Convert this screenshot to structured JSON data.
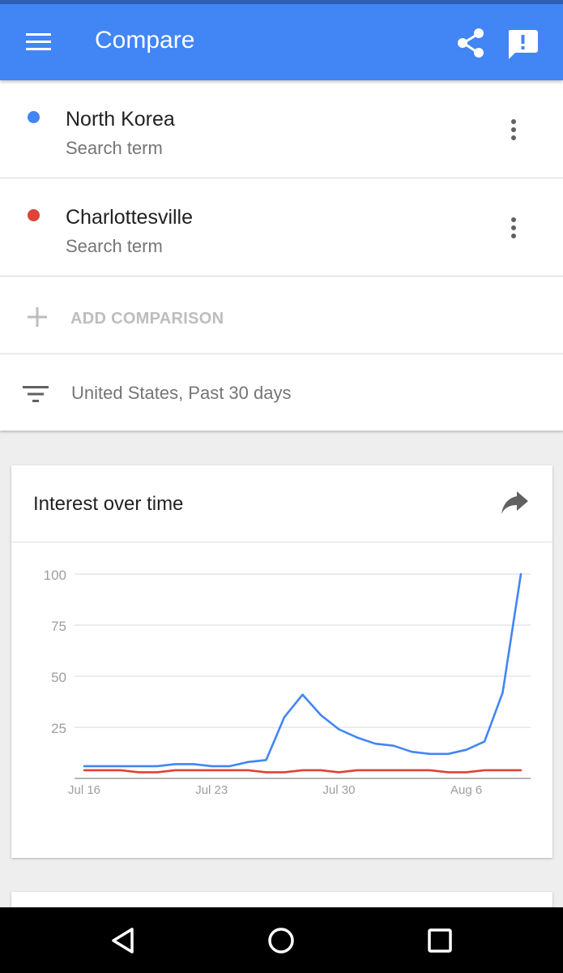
{
  "appbar": {
    "title": "Compare",
    "color": "#4285f4",
    "icons": [
      "menu-icon",
      "share-icon",
      "feedback-icon"
    ]
  },
  "terms": [
    {
      "name": "North Korea",
      "type": "Search term",
      "color": "#4285f4"
    },
    {
      "name": "Charlottesville",
      "type": "Search term",
      "color": "#db4437"
    }
  ],
  "add_comparison": {
    "label": "ADD COMPARISON"
  },
  "filter": {
    "label": "United States, Past 30 days"
  },
  "interest_card": {
    "title": "Interest over time"
  },
  "chart_data": {
    "type": "line",
    "title": "",
    "xlabel": "",
    "ylabel": "",
    "ylim": [
      0,
      100
    ],
    "yticks": [
      25,
      50,
      75,
      100
    ],
    "xticks": [
      {
        "label": "Jul 16",
        "x": 0
      },
      {
        "label": "Jul 23",
        "x": 7
      },
      {
        "label": "Jul 30",
        "x": 14
      },
      {
        "label": "Aug 6",
        "x": 21
      }
    ],
    "x": [
      0,
      1,
      2,
      3,
      4,
      5,
      6,
      7,
      8,
      9,
      10,
      11,
      12,
      13,
      14,
      15,
      16,
      17,
      18,
      19,
      20,
      21,
      22,
      23,
      24
    ],
    "grid": true,
    "series": [
      {
        "color": "#4285f4",
        "values": [
          6,
          6,
          6,
          6,
          6,
          7,
          7,
          6,
          6,
          8,
          9,
          30,
          41,
          31,
          24,
          20,
          17,
          16,
          13,
          12,
          12,
          14,
          18,
          42,
          100
        ]
      },
      {
        "color": "#db4437",
        "values": [
          4,
          4,
          4,
          3,
          3,
          4,
          4,
          4,
          4,
          4,
          3,
          3,
          4,
          4,
          3,
          4,
          4,
          4,
          4,
          4,
          3,
          3,
          4,
          4,
          4
        ]
      }
    ]
  },
  "navbar": {
    "icons": [
      "back-icon",
      "home-icon",
      "recents-icon"
    ]
  }
}
